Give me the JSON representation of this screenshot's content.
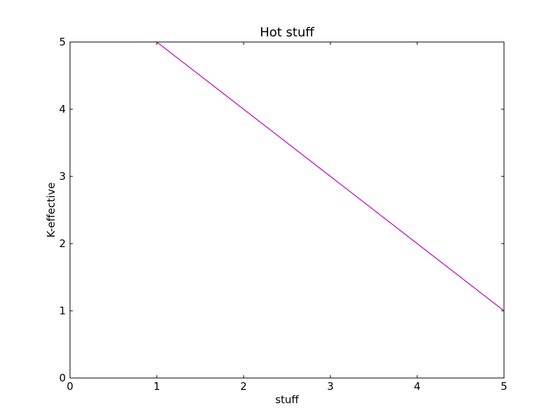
{
  "chart_data": {
    "type": "line",
    "title": "Hot stuff",
    "xlabel": "stuff",
    "ylabel": "K-effective",
    "xlim": [
      0,
      5
    ],
    "ylim": [
      0,
      5
    ],
    "x_ticks": [
      0,
      1,
      2,
      3,
      4,
      5
    ],
    "y_ticks": [
      0,
      1,
      2,
      3,
      4,
      5
    ],
    "x_tick_labels": [
      "0",
      "1",
      "2",
      "3",
      "4",
      "5"
    ],
    "y_tick_labels": [
      "0",
      "1",
      "2",
      "3",
      "4",
      "5"
    ],
    "grid": false,
    "series": [
      {
        "color": "#bf00bf",
        "x": [
          1,
          2,
          3,
          4,
          5
        ],
        "y": [
          5,
          4,
          3,
          2,
          1
        ]
      }
    ]
  }
}
